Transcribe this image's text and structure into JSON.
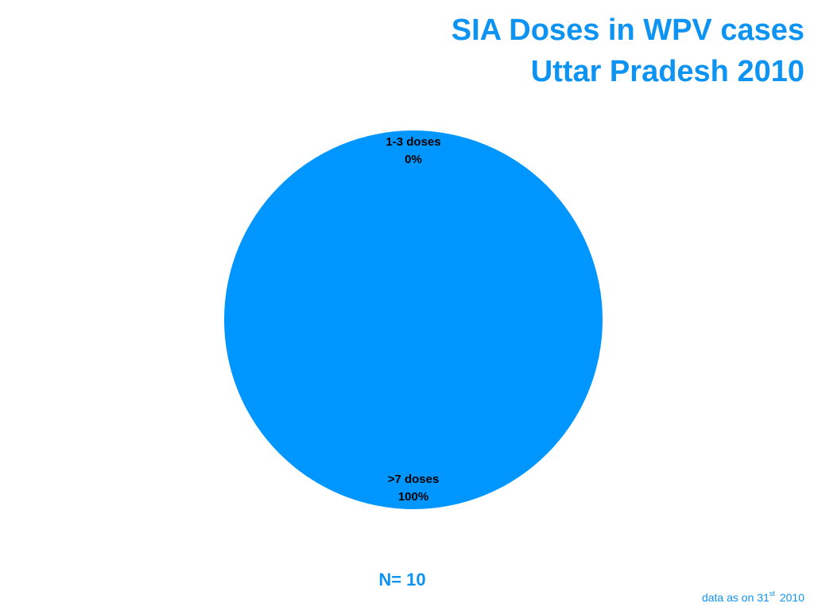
{
  "chart_data": {
    "type": "pie",
    "title": [
      "SIA Doses in WPV cases",
      "Uttar Pradesh 2010"
    ],
    "categories": [
      "1-3 doses",
      ">7 doses"
    ],
    "values": [
      0,
      100
    ],
    "value_labels": [
      "0%",
      "100%"
    ],
    "colors": [
      "#0096ff",
      "#0096ff"
    ],
    "annotation": "N= 10",
    "footnote": {
      "text": "data as on 31",
      "superscript": "st",
      "year": "2010"
    }
  }
}
